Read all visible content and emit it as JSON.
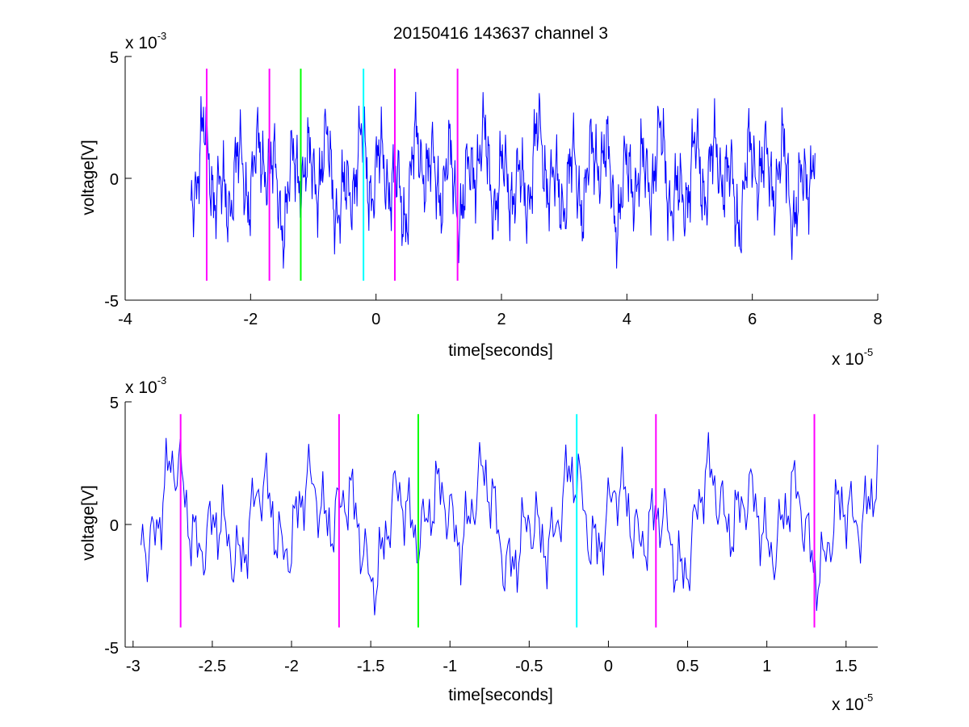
{
  "colors": {
    "signal": "#0000ff",
    "marker_magenta": "#ff00ff",
    "marker_green": "#00ff00",
    "marker_cyan": "#00ffff",
    "axes": "#000000",
    "background": "#ffffff"
  },
  "chart_data": [
    {
      "type": "line",
      "title": "20150416 143637 channel 3",
      "xlabel": "time[seconds]",
      "ylabel": "voltage[V]",
      "x_exponent": {
        "base": "x 10",
        "power": "-5"
      },
      "y_exponent": {
        "base": "x 10",
        "power": "-3"
      },
      "xlim": [
        -4,
        8
      ],
      "ylim": [
        -5,
        5
      ],
      "xticks": [
        -4,
        -2,
        0,
        2,
        4,
        6,
        8
      ],
      "xtick_labels": [
        "-4",
        "-2",
        "0",
        "2",
        "4",
        "6",
        "8"
      ],
      "yticks": [
        -5,
        0,
        5
      ],
      "ytick_labels": [
        "-5",
        "0",
        "5"
      ],
      "grid": false,
      "signal": {
        "x_range": [
          -2.95,
          7.0
        ],
        "points": 1000,
        "waveform": "noisy oscillating voltage trace",
        "y_range_approx": [
          -3.7,
          3.8
        ]
      },
      "markers": [
        {
          "x": -2.7,
          "color": "marker_magenta",
          "y_range": [
            -4.2,
            4.5
          ]
        },
        {
          "x": -1.7,
          "color": "marker_magenta",
          "y_range": [
            -4.2,
            4.5
          ]
        },
        {
          "x": -1.2,
          "color": "marker_green",
          "y_range": [
            -4.2,
            4.5
          ]
        },
        {
          "x": -0.2,
          "color": "marker_cyan",
          "y_range": [
            -4.2,
            4.5
          ]
        },
        {
          "x": 0.3,
          "color": "marker_magenta",
          "y_range": [
            -4.2,
            4.5
          ]
        },
        {
          "x": 1.3,
          "color": "marker_magenta",
          "y_range": [
            -4.2,
            4.5
          ]
        }
      ]
    },
    {
      "type": "line",
      "title": "",
      "xlabel": "time[seconds]",
      "ylabel": "voltage[V]",
      "x_exponent": {
        "base": "x 10",
        "power": "-5"
      },
      "y_exponent": {
        "base": "x 10",
        "power": "-3"
      },
      "xlim": [
        -3.05,
        1.7
      ],
      "ylim": [
        -5,
        5
      ],
      "xticks": [
        -3,
        -2.5,
        -2,
        -1.5,
        -1,
        -0.5,
        0,
        0.5,
        1,
        1.5
      ],
      "xtick_labels": [
        "-3",
        "-2.5",
        "-2",
        "-1.5",
        "-1",
        "-0.5",
        "0",
        "0.5",
        "1",
        "1.5"
      ],
      "yticks": [
        -5,
        0,
        5
      ],
      "ytick_labels": [
        "-5",
        "0",
        "5"
      ],
      "grid": false,
      "signal": {
        "x_range": [
          -2.95,
          1.7
        ],
        "points": 470,
        "waveform": "zoomed noisy oscillating voltage trace",
        "y_range_approx": [
          -3.7,
          4.0
        ]
      },
      "markers": [
        {
          "x": -2.7,
          "color": "marker_magenta",
          "y_range": [
            -4.2,
            4.5
          ]
        },
        {
          "x": -1.7,
          "color": "marker_magenta",
          "y_range": [
            -4.2,
            4.5
          ]
        },
        {
          "x": -1.2,
          "color": "marker_green",
          "y_range": [
            -4.2,
            4.5
          ]
        },
        {
          "x": -0.2,
          "color": "marker_cyan",
          "y_range": [
            -4.2,
            4.5
          ]
        },
        {
          "x": 0.3,
          "color": "marker_magenta",
          "y_range": [
            -4.2,
            4.5
          ]
        },
        {
          "x": 1.3,
          "color": "marker_magenta",
          "y_range": [
            -4.2,
            4.5
          ]
        }
      ]
    }
  ]
}
